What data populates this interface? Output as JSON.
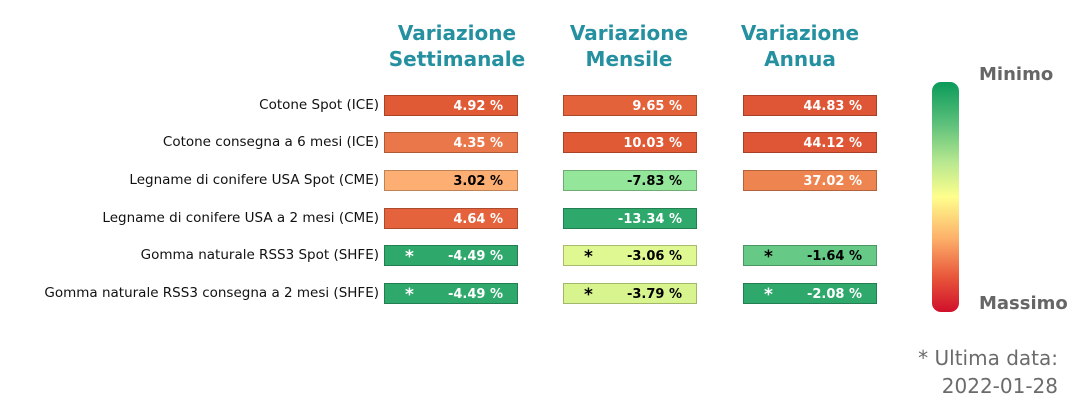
{
  "columns": [
    "Variazione\nSettimanale",
    "Variazione\nMensile",
    "Variazione\nAnnua"
  ],
  "legend": {
    "top_label": "Minimo",
    "bottom_label": "Massimo"
  },
  "footnote_line1": "* Ultima data:",
  "footnote_line2": "2022-01-28",
  "chart_data": {
    "type": "heatmap",
    "columns": [
      "Variazione Settimanale",
      "Variazione Mensile",
      "Variazione Annua"
    ],
    "rows": [
      {
        "label": "Cotone Spot (ICE)",
        "cells": [
          {
            "text": "4.92 %",
            "value": 4.92,
            "star": false,
            "color": "#e05a36",
            "text_color": "#ffffff"
          },
          {
            "text": "9.65 %",
            "value": 9.65,
            "star": false,
            "color": "#e3623a",
            "text_color": "#ffffff"
          },
          {
            "text": "44.83 %",
            "value": 44.83,
            "star": false,
            "color": "#df5636",
            "text_color": "#ffffff"
          }
        ]
      },
      {
        "label": "Cotone consegna a 6 mesi (ICE)",
        "cells": [
          {
            "text": "4.35 %",
            "value": 4.35,
            "star": false,
            "color": "#e9774a",
            "text_color": "#ffffff"
          },
          {
            "text": "10.03 %",
            "value": 10.03,
            "star": false,
            "color": "#e05a36",
            "text_color": "#ffffff"
          },
          {
            "text": "44.12 %",
            "value": 44.12,
            "star": false,
            "color": "#df5636",
            "text_color": "#ffffff"
          }
        ]
      },
      {
        "label": "Legname di conifere USA Spot (CME)",
        "cells": [
          {
            "text": "3.02 %",
            "value": 3.02,
            "star": false,
            "color": "#fdae72",
            "text_color": "#000000"
          },
          {
            "text": "-7.83 %",
            "value": -7.83,
            "star": false,
            "color": "#93e69a",
            "text_color": "#000000"
          },
          {
            "text": "37.02 %",
            "value": 37.02,
            "star": false,
            "color": "#ee8550",
            "text_color": "#ffffff"
          }
        ]
      },
      {
        "label": "Legname di conifere USA a 2 mesi (CME)",
        "cells": [
          {
            "text": "4.64 %",
            "value": 4.64,
            "star": false,
            "color": "#e4633c",
            "text_color": "#ffffff"
          },
          {
            "text": "-13.34 %",
            "value": -13.34,
            "star": false,
            "color": "#2fa86c",
            "text_color": "#ffffff"
          },
          null
        ]
      },
      {
        "label": "Gomma naturale RSS3 Spot (SHFE)",
        "cells": [
          {
            "text": "-4.49 %",
            "value": -4.49,
            "star": true,
            "color": "#2fa86c",
            "text_color": "#ffffff"
          },
          {
            "text": "-3.06 %",
            "value": -3.06,
            "star": true,
            "color": "#e0f892",
            "text_color": "#000000"
          },
          {
            "text": "-1.64 %",
            "value": -1.64,
            "star": true,
            "color": "#66c985",
            "text_color": "#000000"
          }
        ]
      },
      {
        "label": "Gomma naturale RSS3 consegna a 2 mesi (SHFE)",
        "cells": [
          {
            "text": "-4.49 %",
            "value": -4.49,
            "star": true,
            "color": "#2fa86c",
            "text_color": "#ffffff"
          },
          {
            "text": "-3.79 %",
            "value": -3.79,
            "star": true,
            "color": "#d8f48e",
            "text_color": "#000000"
          },
          {
            "text": "-2.08 %",
            "value": -2.08,
            "star": true,
            "color": "#2fa86c",
            "text_color": "#ffffff"
          }
        ]
      }
    ],
    "colorscale": {
      "top": "Minimo",
      "bottom": "Massimo"
    }
  }
}
